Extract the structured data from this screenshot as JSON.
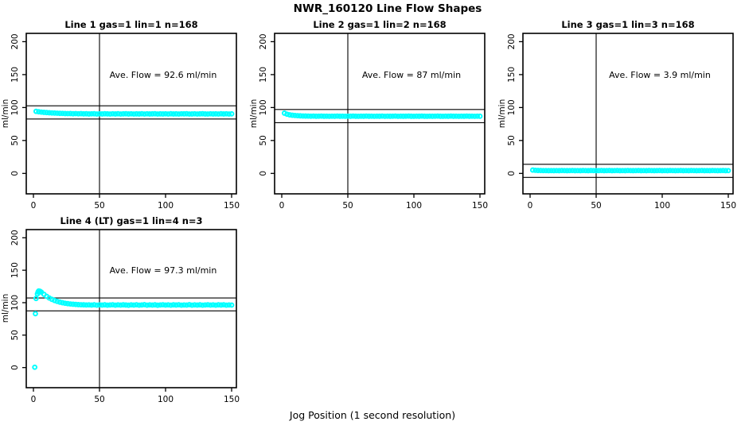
{
  "figure": {
    "title": "NWR_160120  Line Flow Shapes",
    "xlabel": "Jog Position (1 second resolution)",
    "background_color": "#FFFFFF",
    "line_color": "#000000",
    "marker_color": "#00FFFF"
  },
  "chart_data": {
    "type": "scatter",
    "title": "NWR_160120  Line Flow Shapes",
    "xlabel": "Jog Position (1 second resolution)",
    "ylabel": "ml/min",
    "xticks": [
      0,
      50,
      100,
      150
    ],
    "yticks": [
      0,
      50,
      100,
      150,
      200
    ],
    "xlim": [
      -6,
      156
    ],
    "ylim": [
      -31,
      212.6
    ],
    "grid": false,
    "legend": "none",
    "marker": "open-circle",
    "marker_color": "#00FFFF",
    "panels": [
      {
        "id": "line-1",
        "title": "Line 1 gas=1 lin=1 n=168",
        "annotation": "Ave. Flow =  92.6  ml/min",
        "ave_flow_ml_min": 92.6,
        "n": 168,
        "ref_lines": [
          102.6,
          82.6
        ],
        "vline_x": 50,
        "series": {
          "x_start": 2,
          "x_step": 2,
          "y": [
            94.2,
            93.6,
            93.1,
            92.7,
            92.4,
            92.1,
            91.8,
            91.6,
            91.4,
            91.2,
            91.1,
            90.9,
            90.8,
            90.9,
            90.6,
            90.8,
            90.5,
            90.7,
            90.4,
            90.6,
            90.3,
            90.5,
            90.6,
            90.2,
            90.5,
            90.3,
            90.6,
            90.4,
            90.2,
            90.5,
            90.3,
            90.6,
            90.2,
            90.4,
            90.6,
            90.3,
            90.5,
            90.2,
            90.4,
            90.3,
            90.6,
            90.2,
            90.5,
            90.3,
            90.4,
            90.6,
            90.2,
            90.4,
            90.3,
            90.5,
            90.2,
            90.6,
            90.3,
            90.4,
            90.2,
            90.5,
            90.4,
            90.6,
            90.2,
            90.3,
            90.5,
            90.2,
            90.4,
            90.6,
            90.3,
            90.2,
            90.5,
            90.3,
            90.4,
            90.2,
            90.6,
            90.3,
            90.5,
            90.2,
            90.4
          ]
        },
        "extra_points": []
      },
      {
        "id": "line-2",
        "title": "Line 2 gas=1 lin=2 n=168",
        "annotation": "Ave. Flow =  87  ml/min",
        "ave_flow_ml_min": 87,
        "n": 168,
        "ref_lines": [
          97,
          77
        ],
        "vline_x": 50,
        "series": {
          "x_start": 2,
          "x_step": 2,
          "y": [
            91.5,
            89.9,
            88.9,
            88.3,
            87.9,
            87.6,
            87.4,
            87.2,
            87.1,
            87.0,
            86.9,
            87.0,
            86.8,
            86.9,
            87.0,
            86.8,
            86.9,
            86.7,
            86.9,
            86.8,
            87.0,
            86.8,
            86.9,
            86.7,
            86.9,
            86.8,
            87.0,
            86.8,
            86.7,
            86.9,
            86.8,
            87.0,
            86.8,
            86.9,
            86.7,
            86.9,
            86.8,
            87.0,
            86.7,
            86.9,
            86.8,
            86.9,
            87.0,
            86.7,
            86.9,
            86.8,
            86.9,
            87.0,
            86.8,
            86.7,
            86.9,
            86.8,
            87.0,
            86.8,
            86.7,
            86.9,
            86.8,
            86.9,
            87.0,
            86.8,
            86.7,
            86.9,
            86.8,
            87.0,
            86.8,
            86.9,
            86.7,
            86.9,
            86.8,
            87.0,
            86.8,
            86.9,
            86.7,
            86.9,
            86.8
          ]
        },
        "extra_points": []
      },
      {
        "id": "line-3",
        "title": "Line 3 gas=1 lin=3 n=168",
        "annotation": "Ave. Flow =  3.9  ml/min",
        "ave_flow_ml_min": 3.9,
        "n": 168,
        "ref_lines": [
          13.9,
          -6.1
        ],
        "vline_x": 50,
        "series": {
          "x_start": 2,
          "x_step": 2,
          "y": [
            5.1,
            4.7,
            4.5,
            4.4,
            4.3,
            4.3,
            4.2,
            4.3,
            4.2,
            4.3,
            4.2,
            4.4,
            4.3,
            4.2,
            4.3,
            4.4,
            4.2,
            4.3,
            4.2,
            4.4,
            4.3,
            4.2,
            4.4,
            4.3,
            4.2,
            4.3,
            4.4,
            4.2,
            4.3,
            4.4,
            4.2,
            4.3,
            4.4,
            4.2,
            4.3,
            4.2,
            4.4,
            4.3,
            4.2,
            4.3,
            4.4,
            4.2,
            4.3,
            4.2,
            4.4,
            4.3,
            4.2,
            4.3,
            4.4,
            4.2,
            4.3,
            4.2,
            4.4,
            4.3,
            4.2,
            4.3,
            4.4,
            4.2,
            4.3,
            4.2,
            4.4,
            4.3,
            4.2,
            4.3,
            4.4,
            4.2,
            4.3,
            4.2,
            4.4,
            4.3,
            4.2,
            4.3,
            4.4,
            4.2,
            4.3
          ]
        },
        "extra_points": []
      },
      {
        "id": "line-4-lt",
        "title": "Line 4 (LT) gas=1 lin=4 n=3",
        "annotation": "Ave. Flow =  97.3  ml/min",
        "ave_flow_ml_min": 97.3,
        "n": 3,
        "ref_lines": [
          107.3,
          87.3
        ],
        "vline_x": 50,
        "series": {
          "x_start": 2,
          "x_step": 2,
          "y": [
            106.5,
            118.0,
            116.2,
            112.8,
            109.8,
            107.2,
            105.1,
            103.4,
            102.0,
            100.8,
            99.9,
            99.1,
            98.5,
            98.0,
            97.6,
            97.3,
            97.0,
            96.8,
            96.7,
            96.5,
            96.6,
            96.3,
            96.8,
            96.2,
            96.6,
            96.3,
            96.7,
            96.2,
            96.5,
            96.8,
            96.2,
            96.6,
            96.3,
            96.7,
            96.4,
            96.1,
            96.6,
            96.3,
            96.8,
            96.2,
            96.5,
            96.9,
            96.2,
            96.6,
            96.3,
            96.7,
            96.1,
            96.5,
            96.8,
            96.3,
            96.6,
            96.2,
            96.7,
            96.4,
            96.8,
            96.2,
            96.5,
            96.3,
            96.9,
            96.2,
            96.6,
            96.3,
            96.7,
            96.2,
            96.5,
            96.8,
            96.3,
            96.6,
            96.2,
            96.7,
            96.4,
            96.8,
            96.2,
            96.5,
            96.3
          ]
        },
        "extra_points": [
          [
            1,
            0.5
          ],
          [
            1.5,
            83.0
          ],
          [
            3,
            113.5
          ],
          [
            3.5,
            116.5
          ],
          [
            5,
            117.6
          ]
        ]
      }
    ]
  }
}
